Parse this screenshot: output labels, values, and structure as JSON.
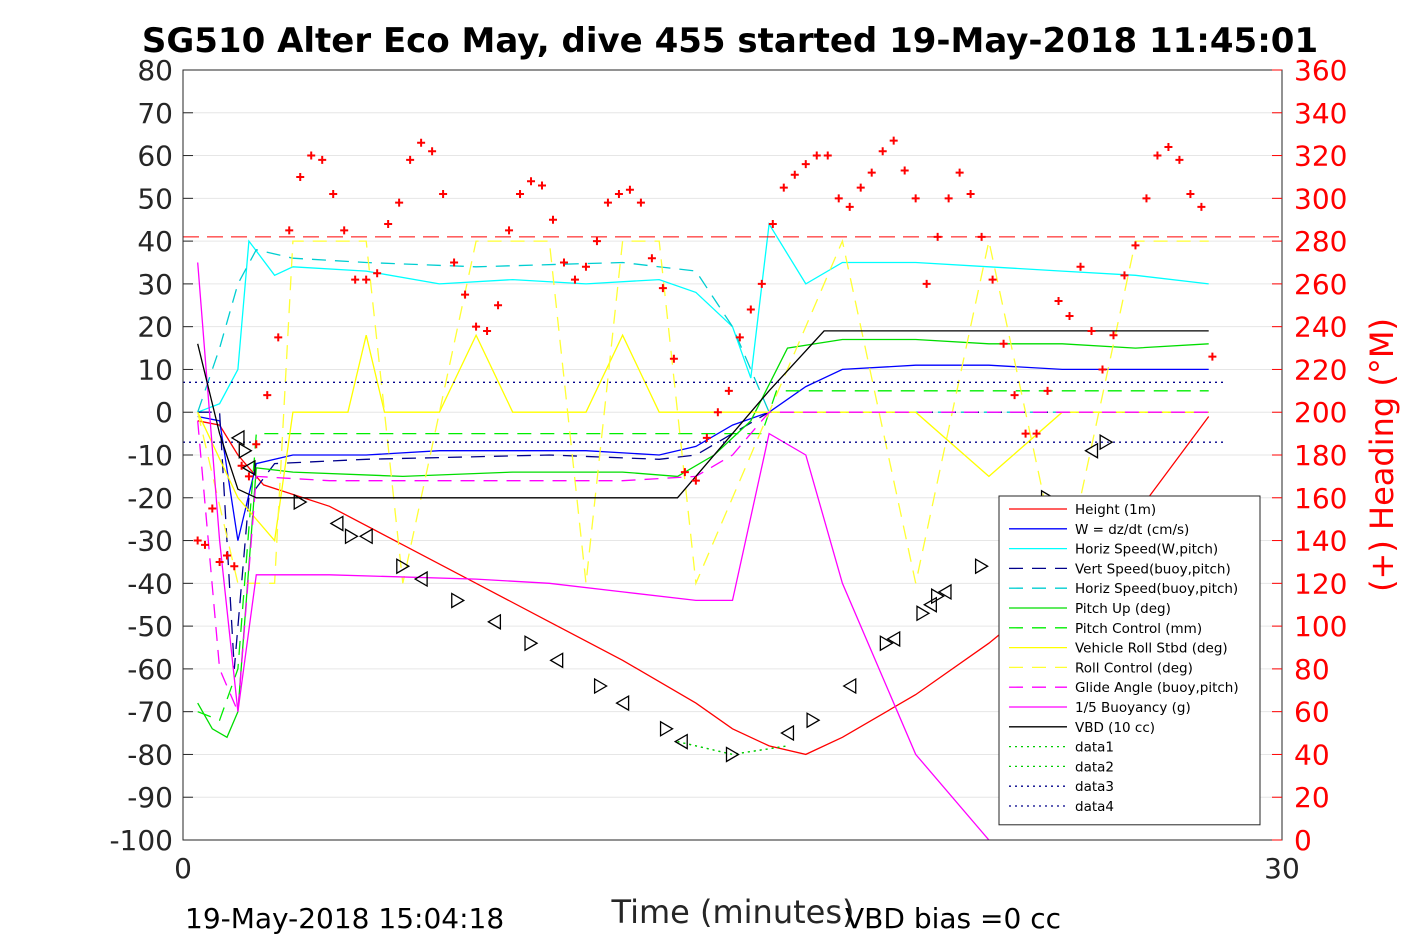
{
  "chart_data": {
    "type": "line",
    "title": "SG510 Alter Eco May, dive 455 started 19-May-2018 11:45:01",
    "xlabel": "Time (minutes)",
    "ylabel_right": "(+) Heading (°M)",
    "xlim": [
      0,
      30
    ],
    "ylim_left": [
      -100,
      80
    ],
    "ylim_right": [
      0,
      360
    ],
    "x_ticks": [
      "0",
      "30"
    ],
    "y_ticks_left": [
      "80",
      "70",
      "60",
      "50",
      "40",
      "30",
      "20",
      "10",
      "0",
      "-10",
      "-20",
      "-30",
      "-40",
      "-50",
      "-60",
      "-70",
      "-80",
      "-90",
      "-100"
    ],
    "y_ticks_right": [
      "360",
      "340",
      "320",
      "300",
      "280",
      "260",
      "240",
      "220",
      "200",
      "180",
      "160",
      "140",
      "120",
      "100",
      "80",
      "60",
      "40",
      "20",
      "0"
    ],
    "footer_left": "19-May-2018 15:04:18",
    "footer_right": "VBD bias =0 cc",
    "grid": true,
    "legend_position": "lower-right",
    "series": [
      {
        "name": "Height (1m)",
        "color": "#ff0000",
        "style": "solid",
        "x": [
          0.4,
          1.0,
          1.5,
          2.2,
          4,
          6,
          8,
          10,
          12,
          14,
          15,
          16,
          17,
          18,
          20,
          22,
          24,
          26,
          28
        ],
        "y": [
          -2,
          -3,
          -10,
          -17,
          -22,
          -31,
          -40,
          -49,
          -58,
          -68,
          -74,
          -78,
          -80,
          -76,
          -66,
          -54,
          -40,
          -24,
          -1
        ]
      },
      {
        "name": "W = dz/dt (cm/s)",
        "color": "#0000ff",
        "style": "solid",
        "x": [
          0.4,
          1.0,
          1.5,
          2.0,
          3,
          5,
          7,
          9,
          11,
          13,
          14,
          15,
          16,
          17,
          18,
          20,
          22,
          24,
          26,
          28
        ],
        "y": [
          -1,
          -2,
          -30,
          -12,
          -10,
          -10,
          -9,
          -9,
          -9,
          -10,
          -8,
          -3,
          0,
          6,
          10,
          11,
          11,
          10,
          10,
          10
        ]
      },
      {
        "name": "Horiz Speed(W,pitch)",
        "color": "#00ffff",
        "style": "solid",
        "x": [
          0.4,
          1.0,
          1.5,
          1.8,
          2.5,
          3,
          5,
          7,
          9,
          11,
          13,
          14,
          15,
          15.5,
          16,
          17,
          18,
          20,
          22,
          24,
          26,
          28
        ],
        "y": [
          0,
          2,
          10,
          40,
          32,
          34,
          33,
          30,
          31,
          30,
          31,
          28,
          20,
          8,
          44,
          30,
          35,
          35,
          34,
          33,
          32,
          30
        ]
      },
      {
        "name": "Vert Speed(buoy,pitch)",
        "color": "#00008b",
        "style": "dashed",
        "x": [
          0.4,
          1.0,
          1.4,
          1.8,
          2.5,
          5,
          10,
          13,
          14,
          15,
          16,
          17,
          18,
          20,
          24,
          28
        ],
        "y": [
          0,
          0,
          -60,
          -20,
          -12,
          -11,
          -10,
          -11,
          -10,
          -5,
          0,
          0,
          0,
          0,
          0,
          0
        ]
      },
      {
        "name": "Horiz Speed(buoy,pitch)",
        "color": "#00ced1",
        "style": "dashed",
        "x": [
          0.4,
          1.0,
          1.5,
          2.0,
          3,
          5,
          8,
          12,
          14,
          15,
          16,
          17,
          18,
          20,
          24,
          28
        ],
        "y": [
          0,
          15,
          30,
          38,
          36,
          35,
          34,
          35,
          33,
          20,
          0,
          0,
          0,
          0,
          0,
          0
        ]
      },
      {
        "name": "Pitch Up (deg)",
        "color": "#00dd00",
        "style": "solid",
        "x": [
          0.4,
          0.8,
          1.2,
          1.5,
          2.0,
          3,
          6,
          9,
          12,
          13.5,
          14.5,
          15.5,
          16.5,
          18,
          20,
          22,
          24,
          26,
          28
        ],
        "y": [
          -68,
          -74,
          -76,
          -70,
          -13,
          -14,
          -15,
          -14,
          -14,
          -15,
          -10,
          -2,
          15,
          17,
          17,
          16,
          16,
          15,
          16
        ]
      },
      {
        "name": "Pitch Control (mm)",
        "color": "#00ee00",
        "style": "dashed",
        "x": [
          0.4,
          1.0,
          1.5,
          2.0,
          4,
          8,
          12,
          14,
          15,
          15.8,
          16.2,
          18,
          22,
          26,
          28
        ],
        "y": [
          -70,
          -72,
          -60,
          -5,
          -5,
          -5,
          -5,
          -5,
          -5,
          -5,
          5,
          5,
          5,
          5,
          5
        ]
      },
      {
        "name": "Vehicle Roll Stbd (deg)",
        "color": "#ffff00",
        "style": "solid",
        "x": [
          0.4,
          1.5,
          2.5,
          3,
          4,
          4.5,
          5,
          5.5,
          6,
          7,
          8,
          9,
          10,
          11,
          12,
          13,
          14,
          16,
          18,
          20,
          22,
          24,
          26,
          28
        ],
        "y": [
          0,
          -20,
          -30,
          0,
          0,
          0,
          18,
          0,
          0,
          0,
          18,
          0,
          0,
          0,
          18,
          0,
          0,
          0,
          0,
          0,
          -15,
          0,
          0,
          0
        ]
      },
      {
        "name": "Roll Control (deg)",
        "color": "#ffff33",
        "style": "dashed",
        "x": [
          0.4,
          1.5,
          2.5,
          3,
          5,
          6,
          8,
          10,
          11,
          12,
          13,
          14,
          16,
          18,
          20,
          22,
          24,
          26,
          28
        ],
        "y": [
          0,
          -40,
          -40,
          40,
          40,
          -40,
          40,
          40,
          -40,
          40,
          40,
          -40,
          0,
          40,
          -40,
          40,
          -40,
          40,
          40
        ]
      },
      {
        "name": "Glide Angle (buoy,pitch)",
        "color": "#ff00ff",
        "style": "dashed",
        "x": [
          0.4,
          1.0,
          1.5,
          2.0,
          4,
          8,
          12,
          14,
          15,
          16,
          18,
          22,
          28
        ],
        "y": [
          -2,
          -60,
          -70,
          -15,
          -16,
          -16,
          -16,
          -15,
          -10,
          0,
          0,
          0,
          0
        ]
      },
      {
        "name": "1/5 Buoyancy (g)",
        "color": "#ff00ff",
        "style": "solid",
        "x": [
          0.4,
          1.0,
          1.5,
          2.0,
          4,
          8,
          10,
          12,
          14,
          15,
          16,
          17,
          18,
          20,
          22
        ],
        "y": [
          35,
          -30,
          -70,
          -38,
          -38,
          -39,
          -40,
          -42,
          -44,
          -44,
          -5,
          -10,
          -40,
          -80,
          -100
        ]
      },
      {
        "name": "VBD (10 cc)",
        "color": "#000000",
        "style": "solid",
        "x": [
          0.4,
          1.0,
          1.5,
          2.0,
          4,
          8,
          12,
          13.5,
          15,
          16,
          17.5,
          18.5,
          22,
          26,
          28
        ],
        "y": [
          16,
          -5,
          -18,
          -20,
          -20,
          -20,
          -20,
          -20,
          -5,
          5,
          19,
          19,
          19,
          19,
          19
        ]
      },
      {
        "name": "data1",
        "color": "#00cc00",
        "style": "dotted",
        "x": [
          13.5,
          15,
          16.5
        ],
        "y": [
          -77,
          -80,
          -78
        ]
      },
      {
        "name": "data2",
        "color": "#00cc00",
        "style": "dotted",
        "x": [
          13.5,
          15,
          16.5
        ],
        "y": [
          -77,
          -80,
          -78
        ]
      },
      {
        "name": "data3",
        "color": "#00008b",
        "style": "dotted",
        "x": [
          0,
          28.5
        ],
        "y": [
          7,
          7
        ]
      },
      {
        "name": "data4",
        "color": "#00008b",
        "style": "dotted",
        "x": [
          0,
          28.5
        ],
        "y": [
          -7,
          -7
        ]
      }
    ],
    "heading_series": {
      "name": "Heading",
      "color": "#ff0000",
      "marker": "+",
      "axis": "right",
      "x": [
        0.4,
        0.6,
        0.8,
        1.0,
        1.2,
        1.4,
        1.6,
        1.8,
        2.0,
        2.3,
        2.6,
        2.9,
        3.2,
        3.5,
        3.8,
        4.1,
        4.4,
        4.7,
        5.0,
        5.3,
        5.6,
        5.9,
        6.2,
        6.5,
        6.8,
        7.1,
        7.4,
        7.7,
        8.0,
        8.3,
        8.6,
        8.9,
        9.2,
        9.5,
        9.8,
        10.1,
        10.4,
        10.7,
        11.0,
        11.3,
        11.6,
        11.9,
        12.2,
        12.5,
        12.8,
        13.1,
        13.4,
        13.7,
        14.0,
        14.3,
        14.6,
        14.9,
        15.2,
        15.5,
        15.8,
        16.1,
        16.4,
        16.7,
        17.0,
        17.3,
        17.6,
        17.9,
        18.2,
        18.5,
        18.8,
        19.1,
        19.4,
        19.7,
        20.0,
        20.3,
        20.6,
        20.9,
        21.2,
        21.5,
        21.8,
        22.1,
        22.4,
        22.7,
        23.0,
        23.3,
        23.6,
        23.9,
        24.2,
        24.5,
        24.8,
        25.1,
        25.4,
        25.7,
        26.0,
        26.3,
        26.6,
        26.9,
        27.2,
        27.5,
        27.8,
        28.1
      ],
      "y": [
        140,
        138,
        155,
        130,
        133,
        128,
        175,
        170,
        185,
        208,
        235,
        285,
        310,
        320,
        318,
        302,
        285,
        262,
        262,
        265,
        288,
        298,
        318,
        326,
        322,
        302,
        270,
        255,
        240,
        238,
        250,
        285,
        302,
        308,
        306,
        290,
        270,
        262,
        268,
        280,
        298,
        302,
        304,
        298,
        272,
        258,
        225,
        172,
        168,
        188,
        200,
        210,
        235,
        248,
        260,
        288,
        305,
        311,
        316,
        320,
        320,
        300,
        296,
        305,
        312,
        322,
        327,
        313,
        300,
        260,
        282,
        300,
        312,
        302,
        282,
        262,
        232,
        208,
        190,
        190,
        210,
        252,
        245,
        268,
        238,
        220,
        236,
        264,
        278,
        300,
        320,
        324,
        318,
        302,
        296,
        226
      ]
    },
    "triangle_markers": {
      "x": [
        1.5,
        1.7,
        1.8,
        3.2,
        4.2,
        4.6,
        5.0,
        6.0,
        6.5,
        7.5,
        8.5,
        9.5,
        10.2,
        11.4,
        12.0,
        13.2,
        13.6,
        15.0,
        16.5,
        17.2,
        18.2,
        19.2,
        19.4,
        20.2,
        20.4,
        20.6,
        20.8,
        21.8,
        22.8,
        23.6,
        24.8,
        25.2
      ],
      "y": [
        -6,
        -9,
        -13,
        -21,
        -26,
        -29,
        -29,
        -36,
        -39,
        -44,
        -49,
        -54,
        -58,
        -64,
        -68,
        -74,
        -77,
        -80,
        -75,
        -72,
        -64,
        -54,
        -53,
        -47,
        -45,
        -43,
        -42,
        -36,
        -26,
        -20,
        -9,
        -7
      ]
    }
  }
}
